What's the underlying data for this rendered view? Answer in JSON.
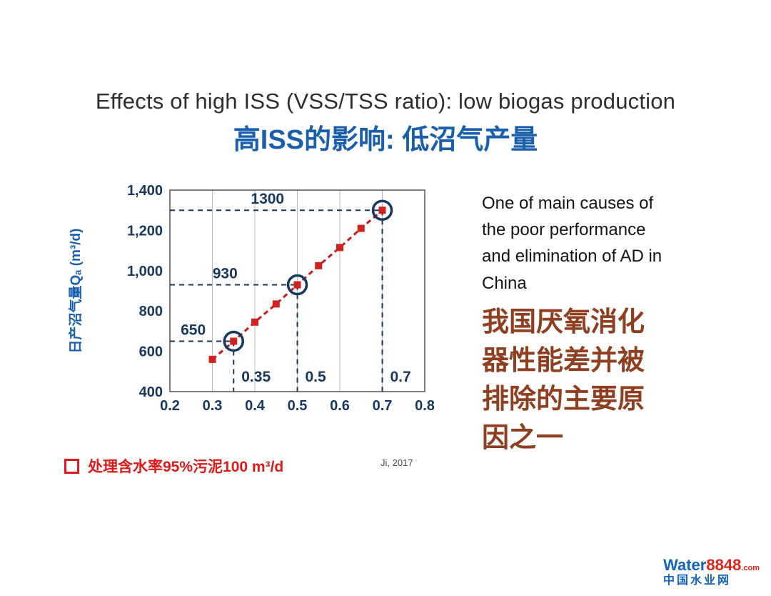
{
  "slide": {
    "title": "Effects of high ISS (VSS/TSS ratio): low biogas production",
    "subtitle": "高ISS的影响: 低沼气产量"
  },
  "chart_data": {
    "type": "line",
    "title": "",
    "xlabel": "",
    "ylabel": "日产沼气量Qₐ (m³/d)",
    "xlim": [
      0.2,
      0.8
    ],
    "ylim": [
      400,
      1400
    ],
    "x_ticks": [
      0.2,
      0.3,
      0.4,
      0.5,
      0.6,
      0.7,
      0.8
    ],
    "y_ticks": [
      400,
      600,
      800,
      1000,
      1200,
      1400
    ],
    "y_tick_labels": [
      "400",
      "600",
      "800",
      "1,000",
      "1,200",
      "1,400"
    ],
    "grid": true,
    "legend_position": "below",
    "x": [
      0.3,
      0.35,
      0.4,
      0.45,
      0.5,
      0.55,
      0.6,
      0.65,
      0.7
    ],
    "values": [
      560,
      650,
      745,
      835,
      930,
      1025,
      1115,
      1210,
      1300
    ],
    "annotations": [
      {
        "x": 0.35,
        "y": 650,
        "y_label": "650",
        "x_label": "0.35"
      },
      {
        "x": 0.5,
        "y": 930,
        "y_label": "930",
        "x_label": "0.5"
      },
      {
        "x": 0.7,
        "y": 1300,
        "y_label": "1300",
        "x_label": "0.7"
      }
    ],
    "colors": {
      "series": "#c81a1a",
      "marker": "#d02020",
      "annotation": "#17375e",
      "grid": "#bbbbbb",
      "axis_label_blue": "#1a5fae"
    }
  },
  "legend": {
    "marker": "open-red-square",
    "label": "处理含水率95%污泥100 m³/d"
  },
  "citation": "Ji, 2017",
  "right_panel": {
    "english": "One of main causes of the poor performance and elimination of AD in China",
    "chinese": "我国厌氧消化器性能差并被排除的主要原因之一"
  },
  "logo": {
    "word": "Water",
    "number": "8848",
    "suffix": ".com",
    "site_name": "中国水业网"
  },
  "colors": {
    "subtitle_blue": "#1a5fae",
    "chinese_maroon": "#8f3e1f",
    "legend_red": "#e01a1a",
    "navy": "#17375e"
  }
}
